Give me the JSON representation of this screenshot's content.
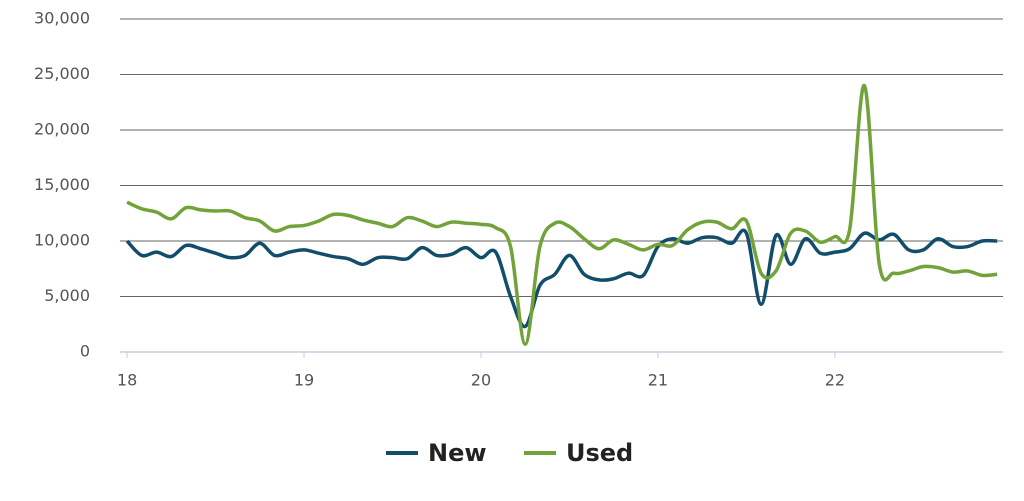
{
  "chart_data": {
    "type": "line",
    "x": [
      18,
      18.083,
      18.167,
      18.25,
      18.333,
      18.417,
      18.5,
      18.583,
      18.667,
      18.75,
      18.833,
      18.917,
      19,
      19.083,
      19.167,
      19.25,
      19.333,
      19.417,
      19.5,
      19.583,
      19.667,
      19.75,
      19.833,
      19.917,
      20,
      20.083,
      20.167,
      20.25,
      20.333,
      20.417,
      20.5,
      20.583,
      20.667,
      20.75,
      20.833,
      20.917,
      21,
      21.083,
      21.167,
      21.25,
      21.333,
      21.417,
      21.5,
      21.583,
      21.667,
      21.75,
      21.833,
      21.917,
      22,
      22.083,
      22.167,
      22.25,
      22.333,
      22.417,
      22.5,
      22.583,
      22.667,
      22.75,
      22.833,
      22.917
    ],
    "series": [
      {
        "name": "New",
        "color": "#124e6b",
        "values": [
          10000,
          8700,
          9000,
          8600,
          9600,
          9300,
          8900,
          8500,
          8700,
          9800,
          8700,
          9000,
          9200,
          8900,
          8600,
          8400,
          7900,
          8500,
          8500,
          8400,
          9400,
          8700,
          8800,
          9400,
          8500,
          9000,
          5000,
          2300,
          6000,
          7000,
          8700,
          7000,
          6500,
          6600,
          7100,
          6900,
          9500,
          10200,
          9800,
          10300,
          10300,
          9800,
          10700,
          4300,
          10500,
          7900,
          10200,
          8900,
          9000,
          9300,
          10700,
          10100,
          10600,
          9200,
          9200,
          10200,
          9500,
          9500,
          10000,
          10000
        ]
      },
      {
        "name": "Used",
        "color": "#72a33a",
        "values": [
          13500,
          12900,
          12600,
          12000,
          13000,
          12800,
          12700,
          12700,
          12100,
          11800,
          10900,
          11300,
          11400,
          11800,
          12400,
          12300,
          11900,
          11600,
          11300,
          12100,
          11800,
          11300,
          11700,
          11600,
          11500,
          11200,
          9500,
          700,
          9500,
          11600,
          11300,
          10200,
          9300,
          10100,
          9700,
          9200,
          9700,
          9600,
          11000,
          11700,
          11700,
          11100,
          11800,
          7100,
          7300,
          10700,
          10900,
          9900,
          10400,
          11000,
          24000,
          8000,
          7100,
          7300,
          7700,
          7600,
          7200,
          7300,
          6900,
          7000
        ]
      }
    ],
    "xlim": [
      17.96,
      22.95
    ],
    "xticks": [
      18,
      19,
      20,
      21,
      22
    ],
    "ylim": [
      0,
      30000
    ],
    "yticks": [
      0,
      {
        "value": 5000,
        "label": "5,000"
      },
      {
        "value": 10000,
        "label": "10,000"
      },
      {
        "value": 15000,
        "label": "15,000"
      },
      {
        "value": 20000,
        "label": "20,000"
      },
      {
        "value": 25000,
        "label": "25,000"
      },
      {
        "value": 30000,
        "label": "30,000"
      }
    ],
    "grid": true
  }
}
